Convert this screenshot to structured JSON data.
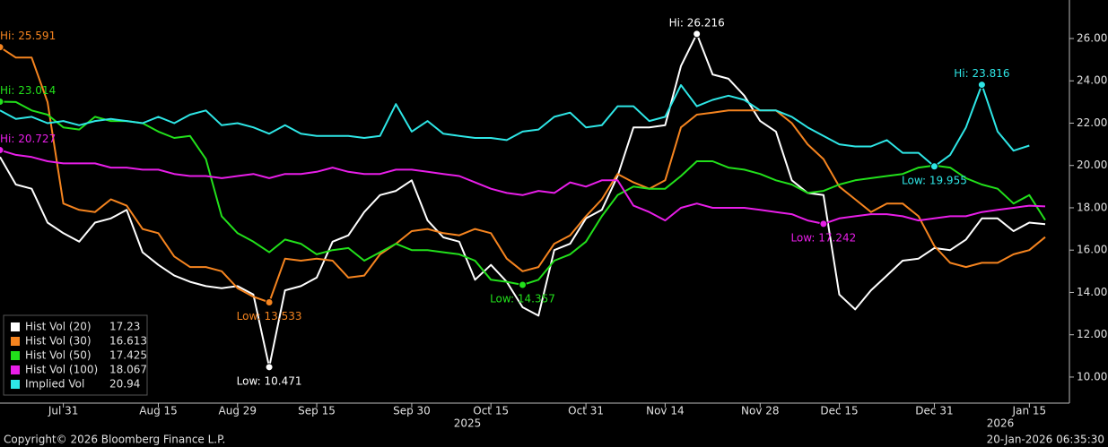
{
  "chart_data": {
    "type": "line",
    "categories": [
      null,
      null,
      null,
      null,
      "Jul 31",
      null,
      null,
      null,
      null,
      null,
      "Aug 15",
      null,
      null,
      null,
      null,
      "Aug 29",
      null,
      null,
      null,
      null,
      "Sep 15",
      null,
      null,
      null,
      null,
      null,
      "Sep 30",
      null,
      null,
      null,
      null,
      "Oct 15",
      null,
      null,
      null,
      null,
      null,
      "Oct 31",
      null,
      null,
      null,
      null,
      "Nov 14",
      null,
      null,
      null,
      null,
      null,
      "Nov 28",
      null,
      null,
      null,
      null,
      "Dec 15",
      null,
      null,
      null,
      null,
      null,
      "Dec 31",
      null,
      null,
      null,
      null,
      null,
      "Jan 15",
      null
    ],
    "year_labels": [
      "2025",
      "2026"
    ],
    "series": [
      {
        "name": "Hist Vol (20)",
        "color": "#ffffff",
        "hi_label": "Hi: 26.216",
        "low_label": "Low: 10.471",
        "values": [
          20.4,
          19.1,
          18.9,
          17.3,
          16.8,
          16.4,
          17.3,
          17.5,
          17.9,
          15.9,
          15.3,
          14.8,
          14.5,
          14.3,
          14.2,
          14.3,
          13.9,
          10.471,
          14.1,
          14.3,
          14.7,
          16.4,
          16.7,
          17.8,
          18.6,
          18.8,
          19.3,
          17.4,
          16.6,
          16.4,
          14.6,
          15.3,
          14.5,
          13.3,
          12.9,
          16.0,
          16.3,
          17.5,
          17.9,
          19.5,
          21.8,
          21.8,
          21.9,
          24.7,
          26.216,
          24.3,
          24.1,
          23.3,
          22.1,
          21.6,
          19.3,
          18.7,
          18.6,
          13.9,
          13.2,
          14.1,
          14.8,
          15.5,
          15.6,
          16.1,
          16.0,
          16.5,
          17.5,
          17.5,
          16.9,
          17.3,
          17.23
        ]
      },
      {
        "name": "Hist Vol (30)",
        "color": "#f5841f",
        "hi_label": "Hi: 25.591",
        "low_label": "Low: 13.533",
        "values": [
          25.591,
          25.1,
          25.1,
          23.0,
          18.2,
          17.9,
          17.8,
          18.4,
          18.1,
          17.0,
          16.8,
          15.7,
          15.2,
          15.2,
          15.0,
          14.2,
          13.8,
          13.533,
          15.6,
          15.5,
          15.6,
          15.5,
          14.7,
          14.8,
          15.8,
          16.3,
          16.9,
          17.0,
          16.8,
          16.7,
          17.0,
          16.8,
          15.6,
          15.0,
          15.2,
          16.3,
          16.7,
          17.6,
          18.4,
          19.6,
          19.2,
          18.9,
          19.3,
          21.8,
          22.4,
          22.5,
          22.6,
          22.6,
          22.6,
          22.6,
          22.0,
          21.0,
          20.3,
          19.0,
          18.4,
          17.8,
          18.2,
          18.2,
          17.6,
          16.2,
          15.4,
          15.2,
          15.4,
          15.4,
          15.8,
          16.0,
          16.613
        ]
      },
      {
        "name": "Hist Vol (50)",
        "color": "#22e01b",
        "hi_label": "Hi: 23.014",
        "low_label": "Low: 14.357",
        "values": [
          23.014,
          23.0,
          22.6,
          22.4,
          21.8,
          21.7,
          22.3,
          22.1,
          22.1,
          22.0,
          21.6,
          21.3,
          21.4,
          20.3,
          17.6,
          16.8,
          16.4,
          15.9,
          16.5,
          16.3,
          15.8,
          16.0,
          16.1,
          15.5,
          15.9,
          16.3,
          16.0,
          16.0,
          15.9,
          15.8,
          15.5,
          14.6,
          14.5,
          14.357,
          14.6,
          15.5,
          15.8,
          16.4,
          17.6,
          18.6,
          19.0,
          18.9,
          18.9,
          19.5,
          20.2,
          20.2,
          19.9,
          19.8,
          19.6,
          19.3,
          19.1,
          18.7,
          18.8,
          19.1,
          19.3,
          19.4,
          19.5,
          19.6,
          19.9,
          20.0,
          19.9,
          19.4,
          19.1,
          18.9,
          18.2,
          18.6,
          17.425
        ]
      },
      {
        "name": "Hist Vol (100)",
        "color": "#e81ee8",
        "hi_label": "Hi: 20.727",
        "low_label": "Low: 17.242",
        "values": [
          20.727,
          20.5,
          20.4,
          20.2,
          20.1,
          20.1,
          20.1,
          19.9,
          19.9,
          19.8,
          19.8,
          19.6,
          19.5,
          19.5,
          19.4,
          19.5,
          19.6,
          19.4,
          19.6,
          19.6,
          19.7,
          19.9,
          19.7,
          19.6,
          19.6,
          19.8,
          19.8,
          19.7,
          19.6,
          19.5,
          19.2,
          18.9,
          18.7,
          18.6,
          18.8,
          18.7,
          19.2,
          19.0,
          19.3,
          19.3,
          18.1,
          17.8,
          17.4,
          18.0,
          18.2,
          18.0,
          18.0,
          18.0,
          17.9,
          17.8,
          17.7,
          17.4,
          17.242,
          17.5,
          17.6,
          17.7,
          17.7,
          17.6,
          17.4,
          17.5,
          17.6,
          17.6,
          17.8,
          17.9,
          18.0,
          18.1,
          18.067
        ]
      },
      {
        "name": "Implied Vol",
        "color": "#2ee6e6",
        "hi_label": "Hi: 23.816",
        "low_label": "Low: 19.955",
        "values": [
          22.6,
          22.2,
          22.3,
          22.0,
          22.1,
          21.9,
          22.1,
          22.2,
          22.1,
          22.0,
          22.3,
          22.0,
          22.4,
          22.6,
          21.9,
          22.0,
          21.8,
          21.5,
          21.9,
          21.5,
          21.4,
          21.4,
          21.4,
          21.3,
          21.4,
          22.9,
          21.6,
          22.1,
          21.5,
          21.4,
          21.3,
          21.3,
          21.2,
          21.6,
          21.7,
          22.3,
          22.5,
          21.8,
          21.9,
          22.8,
          22.8,
          22.1,
          22.3,
          23.8,
          22.8,
          23.1,
          23.3,
          23.1,
          22.6,
          22.6,
          22.3,
          21.8,
          21.4,
          21.0,
          20.9,
          20.9,
          21.2,
          20.6,
          20.6,
          19.955,
          20.5,
          21.8,
          23.816,
          21.6,
          20.7,
          20.94,
          null
        ]
      }
    ],
    "ylim": [
      8.77,
      27.82
    ],
    "yticks": [
      {
        "value": 10,
        "label": "10.00"
      },
      {
        "value": 12,
        "label": "12.00"
      },
      {
        "value": 14,
        "label": "14.00"
      },
      {
        "value": 16,
        "label": "16.00"
      },
      {
        "value": 18,
        "label": "18.00"
      },
      {
        "value": 20,
        "label": "20.00"
      },
      {
        "value": 22,
        "label": "22.00"
      },
      {
        "value": 24,
        "label": "24.00"
      },
      {
        "value": 26,
        "label": "26.00"
      }
    ],
    "grid": false,
    "legend": "lower left"
  },
  "footer": {
    "copyright": "Copyright© 2026 Bloomberg Finance L.P.",
    "timestamp": "20-Jan-2026 06:35:30"
  }
}
